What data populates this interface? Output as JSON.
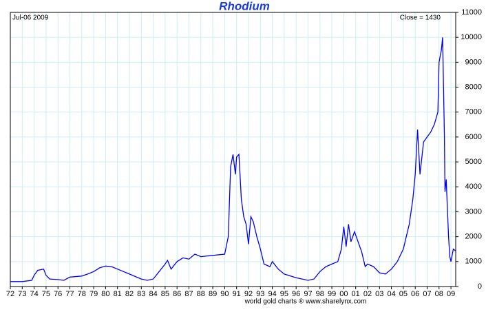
{
  "chart_data": {
    "type": "line",
    "title": "Rhodium",
    "date_label": "Jul-06  2009",
    "close_label": "Close = 1430",
    "footer": "world gold charts ® www.sharelynx.com",
    "color": "#0000ff",
    "grid": true,
    "x": [
      1972.0,
      1973.0,
      1973.8,
      1974.0,
      1974.3,
      1974.8,
      1975.0,
      1975.3,
      1976.0,
      1976.5,
      1977.0,
      1978.0,
      1978.5,
      1979.0,
      1979.5,
      1980.0,
      1980.5,
      1981.0,
      1982.0,
      1983.0,
      1983.5,
      1984.0,
      1984.5,
      1985.0,
      1985.2,
      1985.5,
      1986.0,
      1986.5,
      1987.0,
      1987.5,
      1988.0,
      1989.0,
      1990.0,
      1990.3,
      1990.5,
      1990.7,
      1990.9,
      1991.0,
      1991.2,
      1991.4,
      1991.6,
      1991.8,
      1992.0,
      1992.2,
      1992.4,
      1992.7,
      1993.0,
      1993.3,
      1993.8,
      1994.0,
      1994.5,
      1995.0,
      1996.0,
      1997.0,
      1997.5,
      1998.0,
      1998.5,
      1999.0,
      1999.5,
      1999.8,
      2000.0,
      2000.2,
      2000.4,
      2000.6,
      2000.9,
      2001.2,
      2001.5,
      2001.8,
      2002.0,
      2002.5,
      2003.0,
      2003.5,
      2004.0,
      2004.5,
      2005.0,
      2005.5,
      2005.8,
      2006.0,
      2006.2,
      2006.4,
      2006.7,
      2007.0,
      2007.3,
      2007.6,
      2007.9,
      2008.0,
      2008.2,
      2008.3,
      2008.45,
      2008.5,
      2008.6,
      2008.8,
      2008.9,
      2009.0,
      2009.2,
      2009.4
    ],
    "values": [
      200,
      200,
      250,
      450,
      650,
      700,
      450,
      300,
      280,
      250,
      380,
      420,
      500,
      600,
      750,
      820,
      800,
      700,
      500,
      300,
      250,
      300,
      600,
      900,
      1050,
      700,
      1000,
      1150,
      1100,
      1300,
      1200,
      1250,
      1300,
      2000,
      4800,
      5300,
      4500,
      5200,
      5300,
      3500,
      2800,
      2500,
      1700,
      2800,
      2600,
      2000,
      1500,
      900,
      800,
      1000,
      700,
      500,
      350,
      250,
      300,
      600,
      800,
      900,
      1000,
      1500,
      2400,
      1600,
      2500,
      1800,
      2200,
      1800,
      1400,
      800,
      900,
      800,
      550,
      500,
      700,
      1000,
      1500,
      2500,
      3500,
      4500,
      6300,
      4500,
      5800,
      6000,
      6200,
      6500,
      7000,
      9000,
      9500,
      10000,
      6000,
      3800,
      4300,
      2000,
      1200,
      1000,
      1500,
      1430
    ],
    "xlim": [
      1972,
      2009.4
    ],
    "xticks": [
      {
        "value": 1972,
        "label": "72"
      },
      {
        "value": 1973,
        "label": "73"
      },
      {
        "value": 1974,
        "label": "74"
      },
      {
        "value": 1975,
        "label": "75"
      },
      {
        "value": 1976,
        "label": "76"
      },
      {
        "value": 1977,
        "label": "77"
      },
      {
        "value": 1978,
        "label": "78"
      },
      {
        "value": 1979,
        "label": "79"
      },
      {
        "value": 1980,
        "label": "80"
      },
      {
        "value": 1981,
        "label": "81"
      },
      {
        "value": 1982,
        "label": "82"
      },
      {
        "value": 1983,
        "label": "83"
      },
      {
        "value": 1984,
        "label": "84"
      },
      {
        "value": 1985,
        "label": "85"
      },
      {
        "value": 1986,
        "label": "86"
      },
      {
        "value": 1987,
        "label": "87"
      },
      {
        "value": 1988,
        "label": "88"
      },
      {
        "value": 1989,
        "label": "89"
      },
      {
        "value": 1990,
        "label": "90"
      },
      {
        "value": 1991,
        "label": "91"
      },
      {
        "value": 1992,
        "label": "92"
      },
      {
        "value": 1993,
        "label": "93"
      },
      {
        "value": 1994,
        "label": "94"
      },
      {
        "value": 1995,
        "label": "95"
      },
      {
        "value": 1996,
        "label": "96"
      },
      {
        "value": 1997,
        "label": "97"
      },
      {
        "value": 1998,
        "label": "98"
      },
      {
        "value": 1999,
        "label": "99"
      },
      {
        "value": 2000,
        "label": "00"
      },
      {
        "value": 2001,
        "label": "01"
      },
      {
        "value": 2002,
        "label": "02"
      },
      {
        "value": 2003,
        "label": "03"
      },
      {
        "value": 2004,
        "label": "04"
      },
      {
        "value": 2005,
        "label": "05"
      },
      {
        "value": 2006,
        "label": "06"
      },
      {
        "value": 2007,
        "label": "07"
      },
      {
        "value": 2008,
        "label": "08"
      },
      {
        "value": 2009,
        "label": "09"
      }
    ],
    "ylim": [
      0,
      11000
    ],
    "yticks": [
      0,
      1000,
      2000,
      3000,
      4000,
      5000,
      6000,
      7000,
      8000,
      9000,
      10000,
      11000
    ]
  }
}
